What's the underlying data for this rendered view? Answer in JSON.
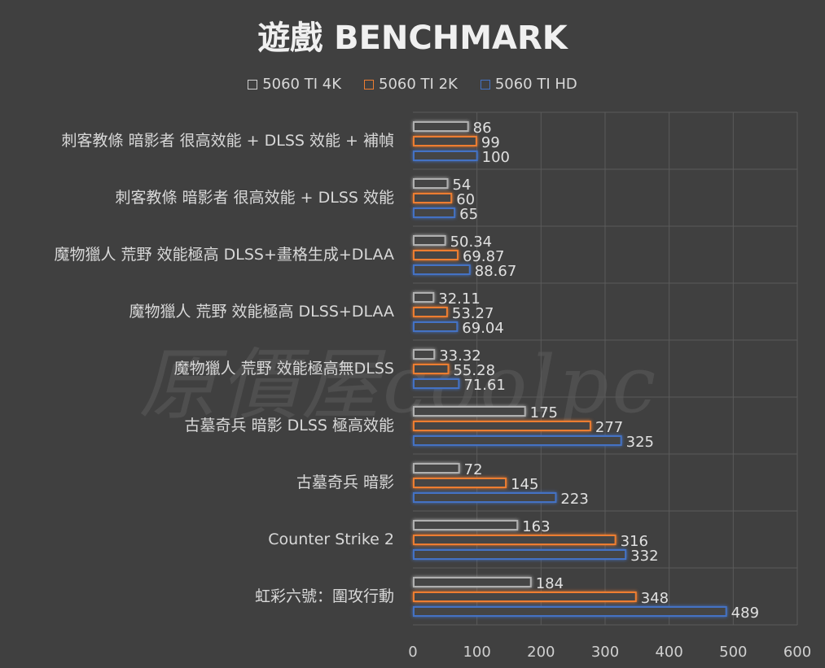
{
  "chart_data": {
    "type": "bar",
    "orientation": "horizontal",
    "title": "遊戲 BENCHMARK",
    "categories": [
      "刺客教條 暗影者 很高效能 + DLSS 效能 + 補幀",
      "刺客教條 暗影者 很高效能 + DLSS 效能",
      "魔物獵人 荒野 效能極高 DLSS+畫格生成+DLAA",
      "魔物獵人 荒野 效能極高 DLSS+DLAA",
      "魔物獵人 荒野 效能極高無DLSS",
      "古墓奇兵 暗影 DLSS 極高效能",
      "古墓奇兵 暗影",
      "Counter Strike 2",
      "虹彩六號：圍攻行動"
    ],
    "series": [
      {
        "name": "5060 TI 4K",
        "color": "#a6a6a6",
        "values": [
          86,
          54,
          50.34,
          32.11,
          33.32,
          175,
          72,
          163,
          184
        ],
        "labels": [
          "86",
          "54",
          "50.34",
          "32.11",
          "33.32",
          "175",
          "72",
          "163",
          "184"
        ]
      },
      {
        "name": "5060 TI 2K",
        "color": "#ed7d31",
        "values": [
          99,
          60,
          69.87,
          53.27,
          55.28,
          277,
          145,
          316,
          348
        ],
        "labels": [
          "99",
          "60",
          "69.87",
          "53.27",
          "55.28",
          "277",
          "145",
          "316",
          "348"
        ]
      },
      {
        "name": "5060 TI HD",
        "color": "#4472c4",
        "values": [
          100,
          65,
          88.67,
          69.04,
          71.61,
          325,
          223,
          332,
          489
        ],
        "labels": [
          "100",
          "65",
          "88.67",
          "69.04",
          "71.61",
          "325",
          "223",
          "332",
          "489"
        ]
      }
    ],
    "xlim": [
      0,
      600
    ],
    "xticks": [
      "0",
      "100",
      "200",
      "300",
      "400",
      "500",
      "600"
    ],
    "grid": true,
    "legend": "top"
  },
  "watermark": "原價屋coolpc"
}
